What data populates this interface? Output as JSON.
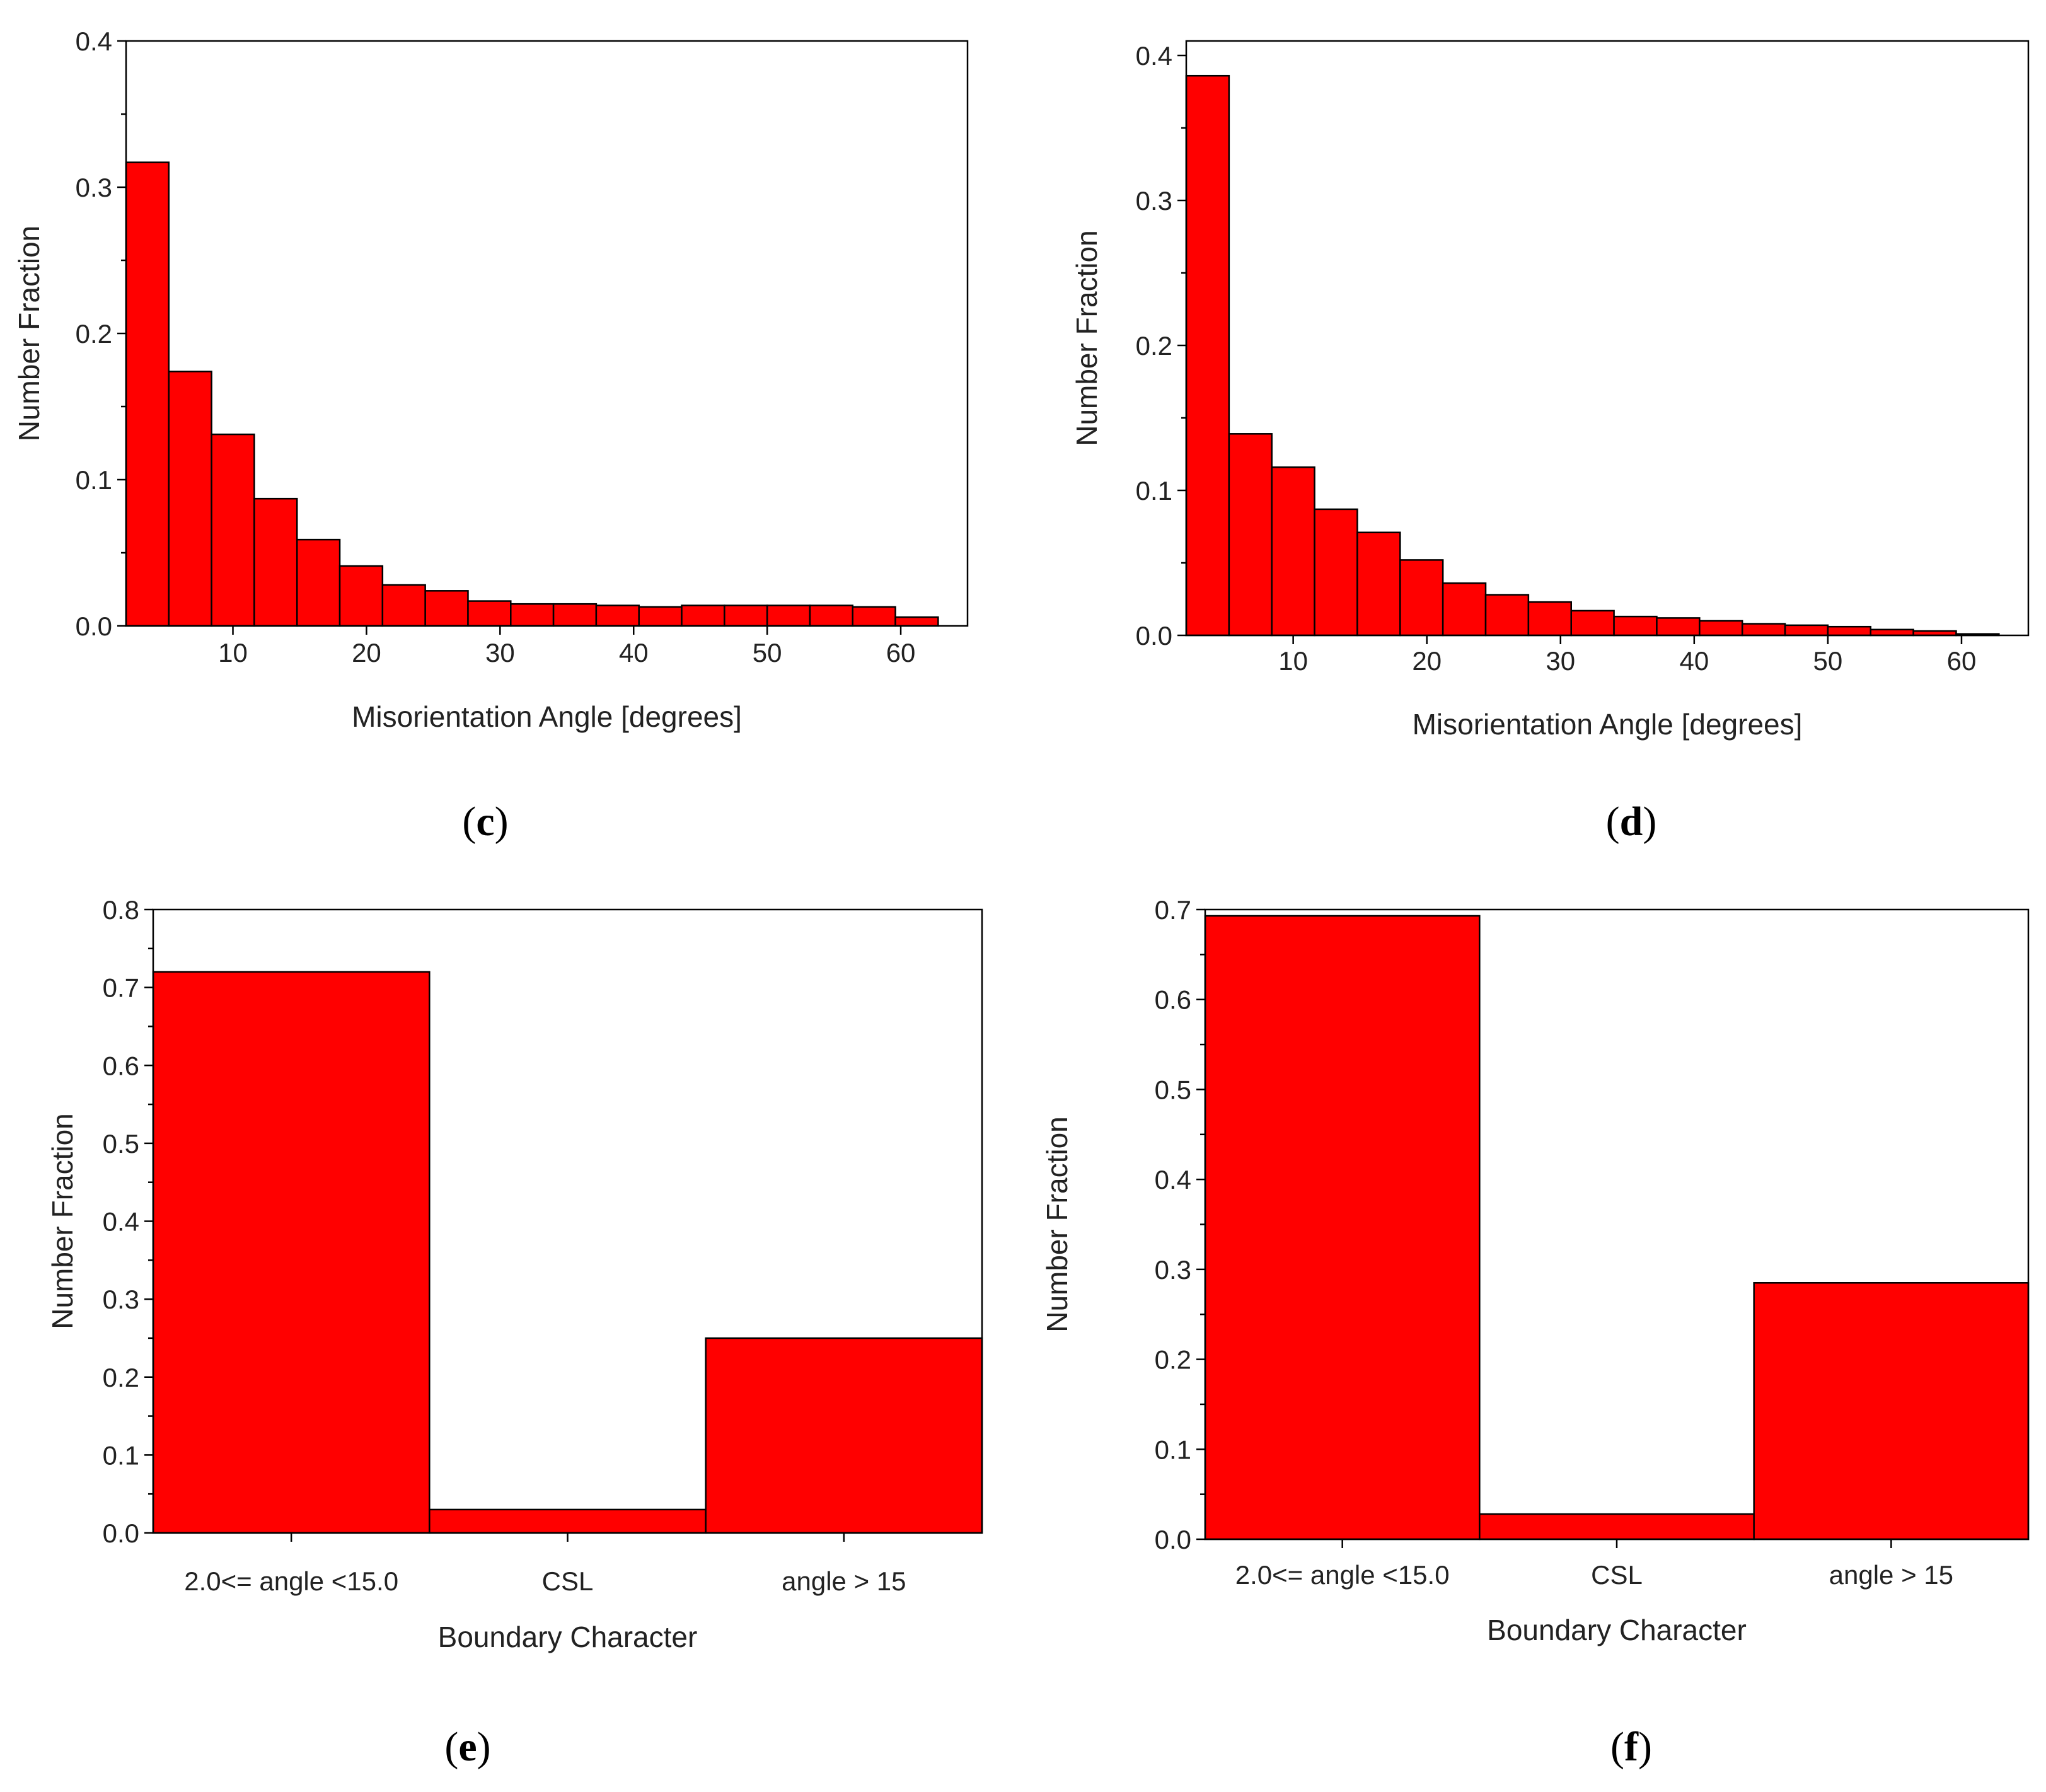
{
  "colors": {
    "bar_fill": "#ff0000",
    "bar_edge": "#000000",
    "axis": "#000000",
    "text": "#222222"
  },
  "chart_data": [
    {
      "id": "c",
      "panel_label": {
        "open": "(",
        "letter": "c",
        "close": ")"
      },
      "type": "bar",
      "xlabel": "Misorientation Angle [degrees]",
      "ylabel": "Number Fraction",
      "xlim": [
        2,
        65
      ],
      "ylim": [
        0,
        0.4
      ],
      "yticks": [
        "0.0",
        "0.1",
        "0.2",
        "0.3",
        "0.4"
      ],
      "ytick_values": [
        0,
        0.1,
        0.2,
        0.3,
        0.4
      ],
      "xticks": [
        "10",
        "20",
        "30",
        "40",
        "50",
        "60"
      ],
      "xtick_values": [
        10,
        20,
        30,
        40,
        50,
        60
      ],
      "bin_edges": [
        2,
        5.2,
        8.4,
        11.6,
        14.8,
        18,
        21.2,
        24.4,
        27.6,
        30.8,
        34,
        37.2,
        40.4,
        43.6,
        46.8,
        50,
        53.2,
        56.4,
        59.6,
        62.8
      ],
      "values": [
        0.317,
        0.174,
        0.131,
        0.087,
        0.059,
        0.041,
        0.028,
        0.024,
        0.017,
        0.015,
        0.015,
        0.014,
        0.013,
        0.014,
        0.014,
        0.014,
        0.014,
        0.013,
        0.006
      ]
    },
    {
      "id": "d",
      "panel_label": {
        "open": "(",
        "letter": "d",
        "close": ")"
      },
      "type": "bar",
      "xlabel": "Misorientation Angle [degrees]",
      "ylabel": "Number Fraction",
      "xlim": [
        2,
        65
      ],
      "ylim": [
        0,
        0.41
      ],
      "yticks": [
        "0.0",
        "0.1",
        "0.2",
        "0.3",
        "0.4"
      ],
      "ytick_values": [
        0,
        0.1,
        0.2,
        0.3,
        0.4
      ],
      "xticks": [
        "10",
        "20",
        "30",
        "40",
        "50",
        "60"
      ],
      "xtick_values": [
        10,
        20,
        30,
        40,
        50,
        60
      ],
      "bin_edges": [
        2,
        5.2,
        8.4,
        11.6,
        14.8,
        18,
        21.2,
        24.4,
        27.6,
        30.8,
        34,
        37.2,
        40.4,
        43.6,
        46.8,
        50,
        53.2,
        56.4,
        59.6,
        62.8
      ],
      "values": [
        0.386,
        0.139,
        0.116,
        0.087,
        0.071,
        0.052,
        0.036,
        0.028,
        0.023,
        0.017,
        0.013,
        0.012,
        0.01,
        0.008,
        0.007,
        0.006,
        0.004,
        0.003,
        0.001
      ]
    },
    {
      "id": "e",
      "panel_label": {
        "open": "(",
        "letter": "e",
        "close": ")"
      },
      "type": "bar",
      "xlabel": "Boundary Character",
      "ylabel": "Number Fraction",
      "ylim": [
        0,
        0.8
      ],
      "yticks": [
        "0.0",
        "0.1",
        "0.2",
        "0.3",
        "0.4",
        "0.5",
        "0.6",
        "0.7",
        "0.8"
      ],
      "ytick_values": [
        0,
        0.1,
        0.2,
        0.3,
        0.4,
        0.5,
        0.6,
        0.7,
        0.8
      ],
      "categories": [
        "2.0<= angle <15.0",
        "CSL",
        "angle > 15"
      ],
      "values": [
        0.72,
        0.03,
        0.25
      ]
    },
    {
      "id": "f",
      "panel_label": {
        "open": "(",
        "letter": "f",
        "close": ")"
      },
      "type": "bar",
      "xlabel": "Boundary Character",
      "ylabel": "Number Fraction",
      "ylim": [
        0,
        0.7
      ],
      "yticks": [
        "0.0",
        "0.1",
        "0.2",
        "0.3",
        "0.4",
        "0.5",
        "0.6",
        "0.7"
      ],
      "ytick_values": [
        0,
        0.1,
        0.2,
        0.3,
        0.4,
        0.5,
        0.6,
        0.7
      ],
      "categories": [
        "2.0<= angle <15.0",
        "CSL",
        "angle > 15"
      ],
      "values": [
        0.693,
        0.028,
        0.285
      ]
    }
  ]
}
